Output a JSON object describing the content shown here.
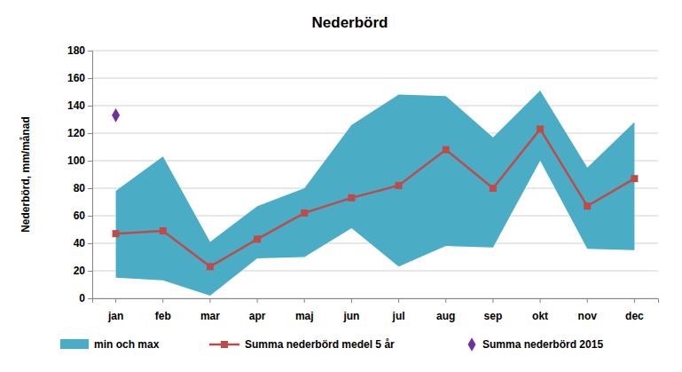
{
  "chart_data": {
    "type": "line",
    "title": "Nederbörd",
    "y_label": "Nederbörd, mm/månad",
    "categories": [
      "jan",
      "feb",
      "mar",
      "apr",
      "maj",
      "jun",
      "jul",
      "aug",
      "sep",
      "okt",
      "nov",
      "dec"
    ],
    "series": [
      {
        "name": "min och max",
        "type": "area",
        "color": "#4bacc6",
        "low": [
          15,
          13,
          2,
          29,
          30,
          51,
          23,
          38,
          37,
          100,
          36,
          35
        ],
        "high": [
          78,
          103,
          41,
          67,
          80,
          126,
          148,
          147,
          117,
          151,
          95,
          128
        ]
      },
      {
        "name": "Summa nederbörd medel 5 år",
        "type": "line",
        "color": "#be4b48",
        "marker": "square",
        "values": [
          47,
          49,
          23,
          43,
          62,
          73,
          82,
          108,
          80,
          123,
          67,
          87
        ]
      },
      {
        "name": "Summa nederbörd 2015",
        "type": "scatter",
        "color": "#7030a0",
        "marker": "diamond",
        "values": [
          133,
          null,
          null,
          null,
          null,
          null,
          null,
          null,
          null,
          null,
          null,
          null
        ]
      }
    ],
    "ylim": [
      0,
      180
    ],
    "yticks": [
      0,
      20,
      40,
      60,
      80,
      100,
      120,
      140,
      160,
      180
    ],
    "grid": true,
    "legend": "bottom"
  }
}
